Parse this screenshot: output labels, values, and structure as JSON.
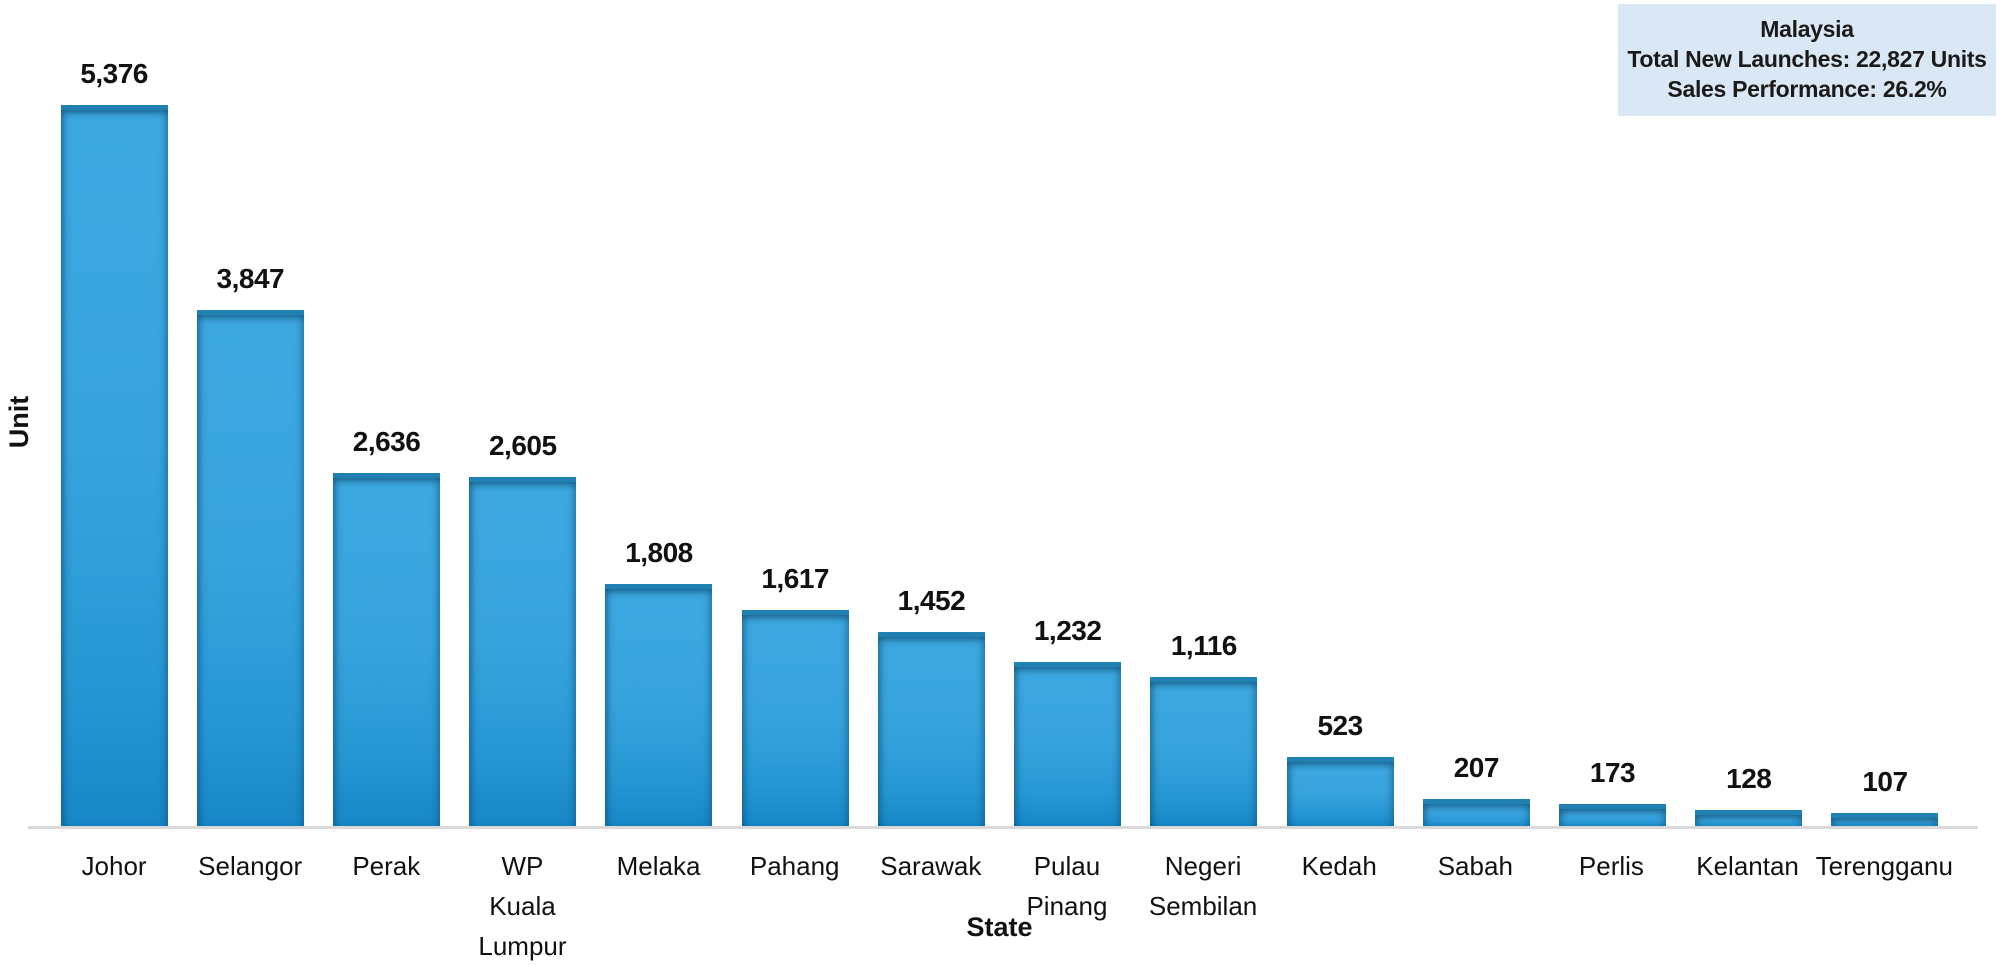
{
  "chart_data": {
    "type": "bar",
    "title": "",
    "categories": [
      "Johor",
      "Selangor",
      "Perak",
      "WP Kuala Lumpur",
      "Melaka",
      "Pahang",
      "Sarawak",
      "Pulau Pinang",
      "Negeri Sembilan",
      "Kedah",
      "Sabah",
      "Perlis",
      "Kelantan",
      "Terengganu"
    ],
    "category_label_lines": [
      [
        "Johor"
      ],
      [
        "Selangor"
      ],
      [
        "Perak"
      ],
      [
        "WP",
        "Kuala",
        "Lumpur"
      ],
      [
        "Melaka"
      ],
      [
        "Pahang"
      ],
      [
        "Sarawak"
      ],
      [
        "Pulau",
        "Pinang"
      ],
      [
        "Negeri",
        "Sembilan"
      ],
      [
        "Kedah"
      ],
      [
        "Sabah"
      ],
      [
        "Perlis"
      ],
      [
        "Kelantan"
      ],
      [
        "Terengganu"
      ]
    ],
    "values": [
      5376,
      3847,
      2636,
      2605,
      1808,
      1617,
      1452,
      1232,
      1116,
      523,
      207,
      173,
      128,
      107
    ],
    "value_labels": [
      "5,376",
      "3,847",
      "2,636",
      "2,605",
      "1,808",
      "1,617",
      "1,452",
      "1,232",
      "1,116",
      "523",
      "207",
      "173",
      "128",
      "107"
    ],
    "xlabel": "State",
    "ylabel": "Unit",
    "ylim": [
      0,
      5600
    ],
    "grid": false,
    "legend_position": "top-right",
    "bar_color": "#2B9FD8"
  },
  "annotation_box": {
    "lines": [
      "Malaysia",
      "Total New Launches: 22,827 Units",
      "Sales Performance: 26.2%"
    ],
    "background": "#DAE8F5",
    "text_color": "#1A1A1A"
  },
  "colors": {
    "bar_fill": "#2B9FD8",
    "bar_top_edge": "#2180B2",
    "bar_bottom": "#1787C7",
    "axis_line": "#D9D9D9",
    "page_background": "#FFFFFF"
  }
}
